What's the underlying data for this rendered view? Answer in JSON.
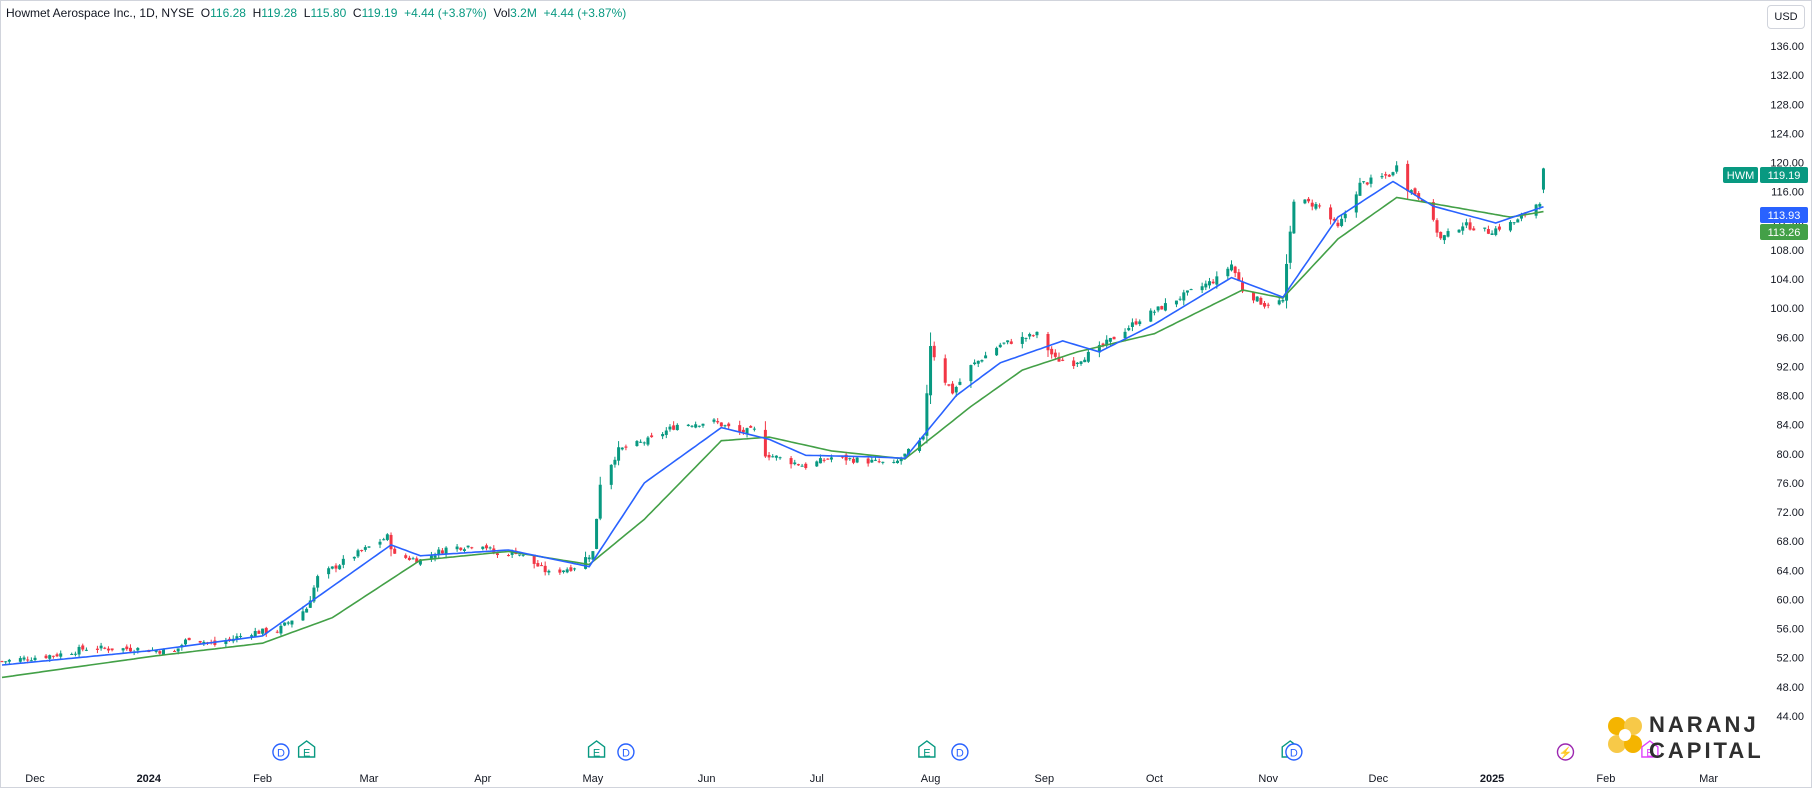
{
  "legend": {
    "title": "Howmet Aerospace Inc., 1D, NYSE",
    "o_label": "O",
    "o": "116.28",
    "h_label": "H",
    "h": "119.28",
    "l_label": "L",
    "l": "115.80",
    "c_label": "C",
    "c": "119.19",
    "change": "+4.44 (+3.87%)",
    "vol_label": "Vol",
    "vol": "3.2M",
    "vol_change": "+4.44 (+3.87%)"
  },
  "currency": "USD",
  "price_tags": {
    "symbol": "HWM",
    "last": "119.19",
    "ma_fast": "113.93",
    "ma_slow": "113.26"
  },
  "colors": {
    "up": "#089981",
    "down": "#f23645",
    "ma_fast": "#2962ff",
    "ma_slow": "#43a047",
    "event_blue": "#2962ff",
    "event_green": "#089981",
    "event_purple": "#9c27b0",
    "event_magenta": "#e040fb"
  },
  "events": [
    {
      "label": "D",
      "color": "blue",
      "date": "2024-02-06"
    },
    {
      "label": "E",
      "color": "green",
      "date": "2024-02-13"
    },
    {
      "label": "E",
      "color": "green",
      "date": "2024-05-02"
    },
    {
      "label": "D",
      "color": "blue",
      "date": "2024-05-10"
    },
    {
      "label": "E",
      "color": "green",
      "date": "2024-07-31"
    },
    {
      "label": "D",
      "color": "blue",
      "date": "2024-08-09"
    },
    {
      "label": "E",
      "color": "green",
      "date": "2024-11-07"
    },
    {
      "label": "D",
      "color": "blue",
      "date": "2024-11-08"
    },
    {
      "label": "⚡",
      "color": "purple",
      "date": "2025-01-21"
    },
    {
      "label": "E",
      "color": "magenta",
      "date": "2025-02-13"
    }
  ],
  "logo": {
    "line1": "NARANJ",
    "line2": "CAPITAL"
  },
  "chart_data": {
    "type": "candlestick",
    "title": "Howmet Aerospace Inc., 1D, NYSE",
    "y_axis_ticks": [
      "44.00",
      "48.00",
      "52.00",
      "56.00",
      "60.00",
      "64.00",
      "68.00",
      "72.00",
      "76.00",
      "80.00",
      "84.00",
      "88.00",
      "92.00",
      "96.00",
      "100.00",
      "104.00",
      "108.00",
      "112.00",
      "116.00",
      "120.00",
      "124.00",
      "128.00",
      "132.00",
      "136.00"
    ],
    "ylim": [
      42.5,
      141
    ],
    "x_axis_labels": [
      {
        "label": "Dec",
        "date": "2023-12-01"
      },
      {
        "label": "2024",
        "date": "2024-01-01",
        "bold": true
      },
      {
        "label": "Feb",
        "date": "2024-02-01"
      },
      {
        "label": "Mar",
        "date": "2024-03-01"
      },
      {
        "label": "Apr",
        "date": "2024-04-01"
      },
      {
        "label": "May",
        "date": "2024-05-01"
      },
      {
        "label": "Jun",
        "date": "2024-06-01"
      },
      {
        "label": "Jul",
        "date": "2024-07-01"
      },
      {
        "label": "Aug",
        "date": "2024-08-01"
      },
      {
        "label": "Sep",
        "date": "2024-09-01"
      },
      {
        "label": "Oct",
        "date": "2024-10-01"
      },
      {
        "label": "Nov",
        "date": "2024-11-01"
      },
      {
        "label": "Dec",
        "date": "2024-12-01"
      },
      {
        "label": "2025",
        "date": "2025-01-01",
        "bold": true
      },
      {
        "label": "Feb",
        "date": "2025-02-01"
      },
      {
        "label": "Mar",
        "date": "2025-03-01"
      }
    ],
    "xlim": [
      "2023-11-22",
      "2025-03-15"
    ],
    "close_anchors": [
      [
        "2023-11-22",
        51.5
      ],
      [
        "2023-12-08",
        52.5
      ],
      [
        "2023-12-15",
        53.3
      ],
      [
        "2023-12-29",
        53.2
      ],
      [
        "2024-01-08",
        52.8
      ],
      [
        "2024-01-12",
        54.8
      ],
      [
        "2024-01-19",
        53.8
      ],
      [
        "2024-01-29",
        55.5
      ],
      [
        "2024-02-05",
        55.7
      ],
      [
        "2024-02-13",
        58.8
      ],
      [
        "2024-02-16",
        63.0
      ],
      [
        "2024-02-23",
        65.2
      ],
      [
        "2024-03-06",
        68.6
      ],
      [
        "2024-03-08",
        66.0
      ],
      [
        "2024-03-15",
        65.4
      ],
      [
        "2024-03-22",
        67.0
      ],
      [
        "2024-04-01",
        67.6
      ],
      [
        "2024-04-05",
        66.0
      ],
      [
        "2024-04-10",
        66.6
      ],
      [
        "2024-04-19",
        63.6
      ],
      [
        "2024-04-26",
        64.5
      ],
      [
        "2024-05-01",
        66.5
      ],
      [
        "2024-05-03",
        76.0
      ],
      [
        "2024-05-08",
        80.5
      ],
      [
        "2024-05-17",
        82.0
      ],
      [
        "2024-05-24",
        84.0
      ],
      [
        "2024-06-03",
        84.4
      ],
      [
        "2024-06-10",
        83.0
      ],
      [
        "2024-06-14",
        83.2
      ],
      [
        "2024-06-17",
        80.0
      ],
      [
        "2024-06-28",
        78.3
      ],
      [
        "2024-07-05",
        79.5
      ],
      [
        "2024-07-15",
        79.0
      ],
      [
        "2024-07-22",
        78.5
      ],
      [
        "2024-07-30",
        82.0
      ],
      [
        "2024-08-01",
        95.0
      ],
      [
        "2024-08-02",
        93.5
      ],
      [
        "2024-08-05",
        90.0
      ],
      [
        "2024-08-07",
        88.5
      ],
      [
        "2024-08-12",
        92.0
      ],
      [
        "2024-08-20",
        95.0
      ],
      [
        "2024-08-30",
        96.4
      ],
      [
        "2024-09-04",
        93.0
      ],
      [
        "2024-09-09",
        92.5
      ],
      [
        "2024-09-16",
        94.5
      ],
      [
        "2024-09-27",
        98.5
      ],
      [
        "2024-10-08",
        101.5
      ],
      [
        "2024-10-18",
        104.0
      ],
      [
        "2024-10-22",
        106.0
      ],
      [
        "2024-10-25",
        102.5
      ],
      [
        "2024-10-31",
        100.5
      ],
      [
        "2024-11-05",
        101.0
      ],
      [
        "2024-11-08",
        115.0
      ],
      [
        "2024-11-15",
        114.0
      ],
      [
        "2024-11-20",
        111.0
      ],
      [
        "2024-11-26",
        117.0
      ],
      [
        "2024-12-05",
        118.5
      ],
      [
        "2024-12-06",
        120.0
      ],
      [
        "2024-12-09",
        116.5
      ],
      [
        "2024-12-13",
        115.0
      ],
      [
        "2024-12-18",
        109.5
      ],
      [
        "2024-12-24",
        111.5
      ],
      [
        "2024-12-31",
        110.5
      ],
      [
        "2025-01-08",
        112.0
      ],
      [
        "2025-01-14",
        114.75
      ],
      [
        "2025-01-15",
        119.19
      ]
    ],
    "ema_fast_anchors": [
      [
        "2023-11-22",
        51.0
      ],
      [
        "2024-01-02",
        53.0
      ],
      [
        "2024-02-01",
        55.0
      ],
      [
        "2024-03-07",
        67.5
      ],
      [
        "2024-03-15",
        66.0
      ],
      [
        "2024-04-08",
        66.8
      ],
      [
        "2024-04-30",
        64.5
      ],
      [
        "2024-05-15",
        76.0
      ],
      [
        "2024-06-05",
        83.6
      ],
      [
        "2024-06-18",
        82.0
      ],
      [
        "2024-06-28",
        79.8
      ],
      [
        "2024-07-15",
        79.6
      ],
      [
        "2024-07-25",
        79.4
      ],
      [
        "2024-08-08",
        88.0
      ],
      [
        "2024-08-20",
        92.5
      ],
      [
        "2024-09-06",
        95.5
      ],
      [
        "2024-09-16",
        94.0
      ],
      [
        "2024-10-01",
        97.8
      ],
      [
        "2024-10-22",
        104.2
      ],
      [
        "2024-11-05",
        101.5
      ],
      [
        "2024-11-20",
        112.5
      ],
      [
        "2024-12-05",
        117.4
      ],
      [
        "2024-12-16",
        114.0
      ],
      [
        "2025-01-02",
        111.7
      ],
      [
        "2025-01-15",
        113.93
      ]
    ],
    "ema_slow_anchors": [
      [
        "2023-11-22",
        49.3
      ],
      [
        "2024-01-02",
        52.2
      ],
      [
        "2024-02-01",
        54.0
      ],
      [
        "2024-02-20",
        57.5
      ],
      [
        "2024-03-15",
        65.4
      ],
      [
        "2024-04-08",
        66.6
      ],
      [
        "2024-04-30",
        64.8
      ],
      [
        "2024-05-15",
        71.0
      ],
      [
        "2024-06-05",
        81.8
      ],
      [
        "2024-06-18",
        82.3
      ],
      [
        "2024-07-05",
        80.4
      ],
      [
        "2024-07-25",
        79.3
      ],
      [
        "2024-08-12",
        86.5
      ],
      [
        "2024-08-26",
        91.5
      ],
      [
        "2024-09-10",
        94.0
      ],
      [
        "2024-10-01",
        96.5
      ],
      [
        "2024-10-25",
        102.5
      ],
      [
        "2024-11-05",
        101.4
      ],
      [
        "2024-11-20",
        109.5
      ],
      [
        "2024-12-06",
        115.2
      ],
      [
        "2024-12-20",
        114.0
      ],
      [
        "2025-01-06",
        112.5
      ],
      [
        "2025-01-15",
        113.26
      ]
    ],
    "last_candle": {
      "date": "2025-01-15",
      "open": 116.28,
      "high": 119.28,
      "low": 115.8,
      "close": 119.19
    }
  }
}
